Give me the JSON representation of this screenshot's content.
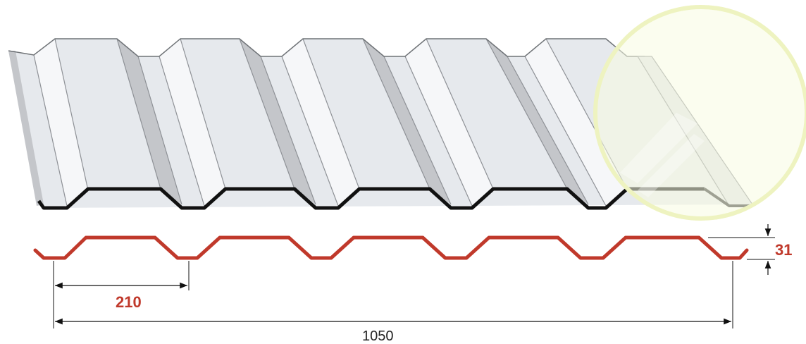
{
  "dimensions": {
    "pitch": "210",
    "height": "31",
    "overall_width": "1050"
  },
  "colors": {
    "profile_line": "#c0392b",
    "sheet_face": "#e6e9ed",
    "sheet_light": "#f4f5f7",
    "sheet_shadow": "#c4c6ca",
    "edge_dark": "#111111",
    "highlight_circle": "#f2f6c8",
    "dimension_line": "#111111"
  }
}
